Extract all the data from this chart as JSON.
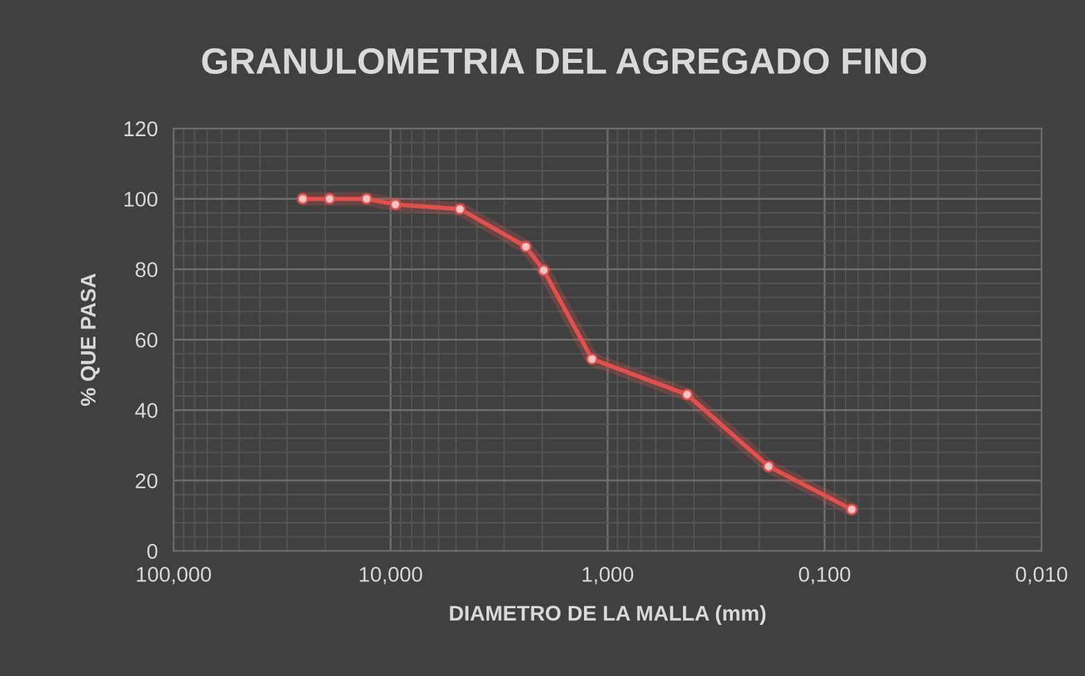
{
  "chart_data": {
    "type": "line",
    "title": "GRANULOMETRIA DEL AGREGADO FINO",
    "xlabel": "DIAMETRO DE LA MALLA (mm)",
    "ylabel": "% QUE PASA",
    "log": "x",
    "xlim": [
      100,
      0.01
    ],
    "xticks": [
      {
        "value": 100,
        "label": "100,000"
      },
      {
        "value": 10,
        "label": "10,000"
      },
      {
        "value": 1,
        "label": "1,000"
      },
      {
        "value": 0.1,
        "label": "0,100"
      },
      {
        "value": 0.01,
        "label": "0,010"
      }
    ],
    "ylim": [
      0,
      120
    ],
    "yticks": [
      0,
      20,
      40,
      60,
      80,
      100,
      120
    ],
    "grid": true,
    "marker": "circle",
    "line_style": "solid",
    "series": [
      {
        "color": "#e0504c",
        "x": [
          25.4,
          19.1,
          12.9,
          9.5,
          4.79,
          2.38,
          1.97,
          1.18,
          0.43,
          0.181,
          0.075
        ],
        "values": [
          100,
          100,
          100,
          98.4,
          97.1,
          86.4,
          79.7,
          54.5,
          44.4,
          24.0,
          11.8
        ]
      }
    ]
  }
}
